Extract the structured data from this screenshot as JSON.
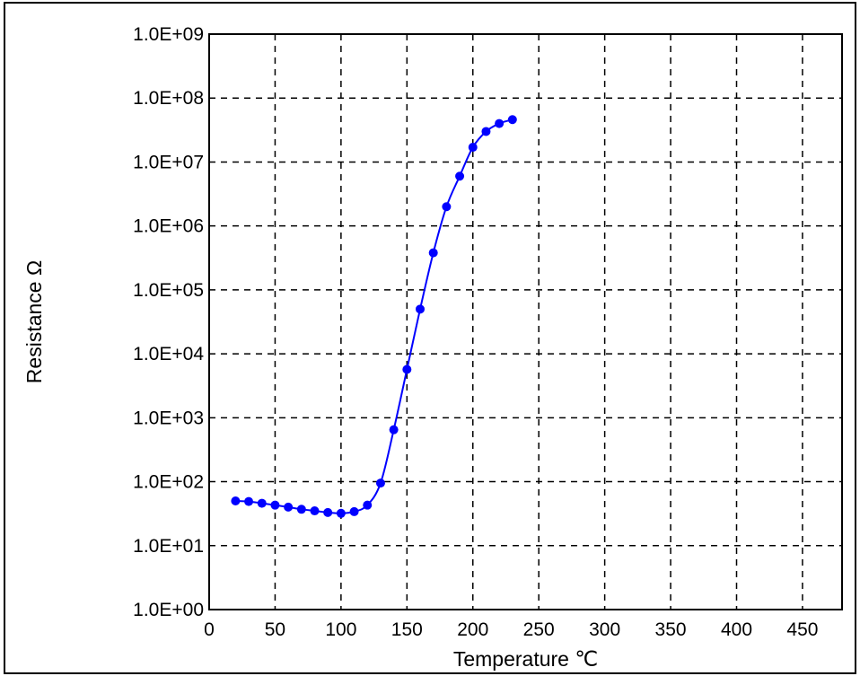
{
  "chart_data": {
    "type": "line",
    "title": "",
    "xlabel": "Temperature  ℃",
    "ylabel": "Resistance  Ω",
    "xlim": [
      0,
      480
    ],
    "ylim": [
      1,
      1000000000
    ],
    "y_scale": "log",
    "grid": true,
    "x_ticks": [
      0,
      50,
      100,
      150,
      200,
      250,
      300,
      350,
      400,
      450
    ],
    "x_tick_labels": [
      "0",
      "50",
      "100",
      "150",
      "200",
      "250",
      "300",
      "350",
      "400",
      "450"
    ],
    "y_ticks": [
      1,
      10,
      100,
      1000,
      10000,
      100000,
      1000000,
      10000000,
      100000000,
      1000000000
    ],
    "y_tick_labels": [
      "1.0E+00",
      "1.0E+01",
      "1.0E+02",
      "1.0E+03",
      "1.0E+04",
      "1.0E+05",
      "1.0E+06",
      "1.0E+07",
      "1.0E+08",
      "1.0E+09"
    ],
    "series": [
      {
        "color": "#0000ff",
        "x": [
          20,
          30,
          40,
          50,
          60,
          70,
          80,
          90,
          100,
          110,
          120,
          130,
          140,
          150,
          160,
          170,
          180,
          190,
          200,
          210,
          220,
          230
        ],
        "y": [
          50,
          49,
          46,
          43,
          40,
          37,
          35,
          33,
          32,
          34,
          43,
          95,
          650,
          5700,
          50000,
          380000,
          2000000,
          6000000,
          17000000,
          30000000,
          40000000,
          46000000
        ]
      }
    ]
  }
}
